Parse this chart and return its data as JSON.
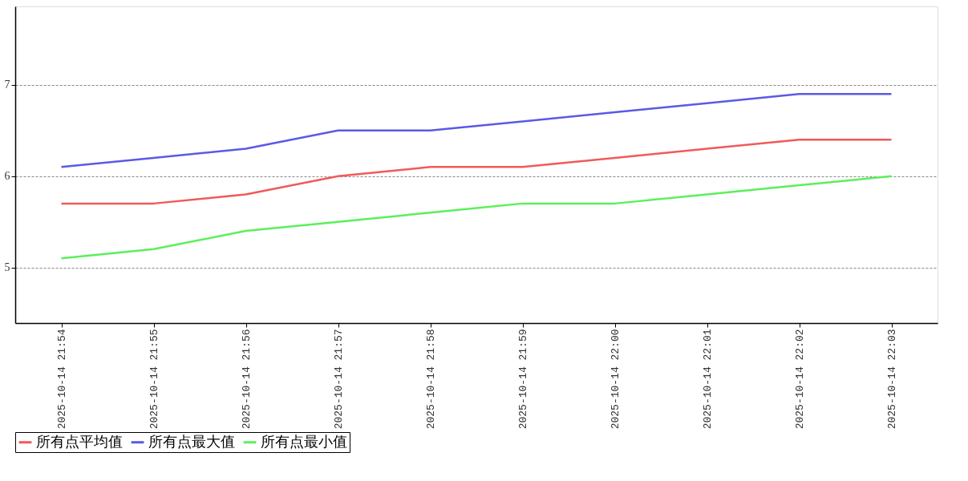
{
  "chart_data": {
    "type": "line",
    "categories": [
      "2025-10-14 21:54",
      "2025-10-14 21:55",
      "2025-10-14 21:56",
      "2025-10-14 21:57",
      "2025-10-14 21:58",
      "2025-10-14 21:59",
      "2025-10-14 22:00",
      "2025-10-14 22:01",
      "2025-10-14 22:02",
      "2025-10-14 22:03"
    ],
    "series": [
      {
        "name": "所有点平均值",
        "color": "#f05a5a",
        "values": [
          5.7,
          5.7,
          5.8,
          6.0,
          6.1,
          6.1,
          6.2,
          6.3,
          6.4,
          6.4
        ]
      },
      {
        "name": "所有点最大值",
        "color": "#5a5ae6",
        "values": [
          6.1,
          6.2,
          6.3,
          6.5,
          6.5,
          6.6,
          6.7,
          6.8,
          6.9,
          6.9
        ]
      },
      {
        "name": "所有点最小值",
        "color": "#5af05a",
        "values": [
          5.1,
          5.2,
          5.4,
          5.5,
          5.6,
          5.7,
          5.7,
          5.8,
          5.9,
          6.0
        ]
      }
    ],
    "ylim": [
      4.39,
      7.86
    ],
    "yticks": [
      5,
      6,
      7
    ],
    "grid": "y",
    "legend": "bottom",
    "marker": "none",
    "line_style": "solid"
  }
}
